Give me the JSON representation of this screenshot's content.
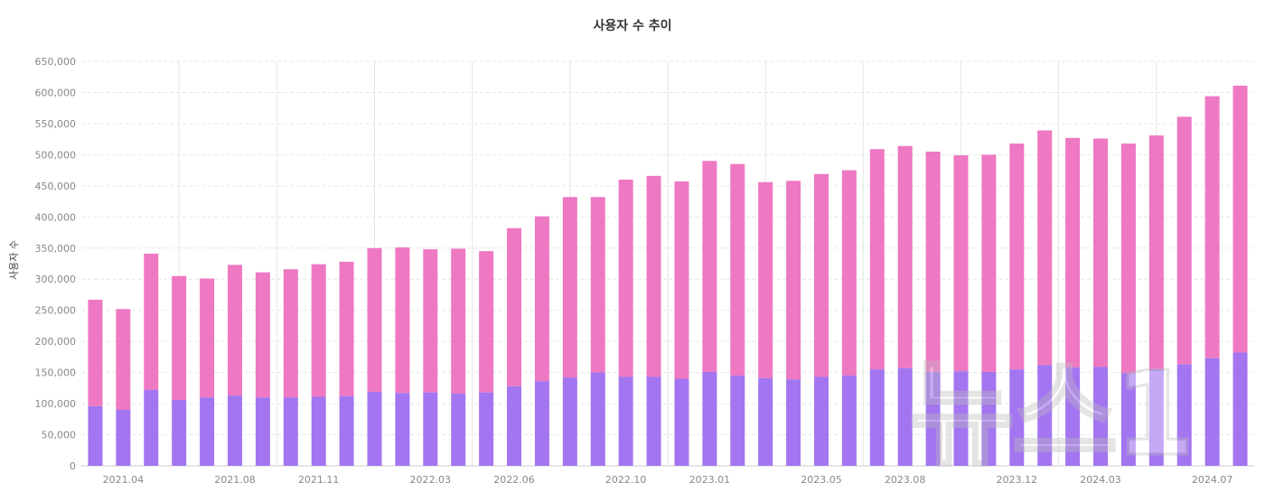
{
  "chart_data": {
    "type": "bar",
    "stacked": true,
    "title": "사용자 수 추이",
    "ylabel": "사용자 수",
    "xlabel": "",
    "ylim": [
      0,
      650000
    ],
    "y_ticks": [
      "0",
      "50,000",
      "100,000",
      "150,000",
      "200,000",
      "250,000",
      "300,000",
      "350,000",
      "400,000",
      "450,000",
      "500,000",
      "550,000",
      "600,000",
      "650,000"
    ],
    "x_tick_labels": [
      {
        "index": 1,
        "label": "2021.04"
      },
      {
        "index": 5,
        "label": "2021.08"
      },
      {
        "index": 8,
        "label": "2021.11"
      },
      {
        "index": 12,
        "label": "2022.03"
      },
      {
        "index": 15,
        "label": "2022.06"
      },
      {
        "index": 19,
        "label": "2022.10"
      },
      {
        "index": 22,
        "label": "2023.01"
      },
      {
        "index": 26,
        "label": "2023.05"
      },
      {
        "index": 29,
        "label": "2023.08"
      },
      {
        "index": 33,
        "label": "2023.12"
      },
      {
        "index": 36,
        "label": "2024.03"
      },
      {
        "index": 40,
        "label": "2024.07"
      }
    ],
    "grid": true,
    "colors": {
      "lower": "#a375f0",
      "upper": "#ee78c2",
      "grid": "#e6e6e6"
    },
    "series_lower": [
      96000,
      90000,
      122000,
      106000,
      110000,
      113000,
      110000,
      110000,
      111000,
      112000,
      119000,
      117000,
      118000,
      116000,
      118000,
      128000,
      136000,
      142000,
      150000,
      143000,
      143000,
      140000,
      151000,
      145000,
      141000,
      139000,
      143000,
      145000,
      155000,
      157000,
      151000,
      152000,
      151000,
      155000,
      162000,
      158000,
      159000,
      149000,
      155000,
      163000,
      173000,
      182000
    ],
    "totals": [
      267000,
      252000,
      341000,
      305000,
      301000,
      323000,
      311000,
      316000,
      324000,
      328000,
      350000,
      351000,
      348000,
      349000,
      345000,
      382000,
      401000,
      432000,
      432000,
      460000,
      466000,
      457000,
      490000,
      485000,
      456000,
      458000,
      469000,
      475000,
      509000,
      514000,
      505000,
      499000,
      500000,
      518000,
      539000,
      527000,
      526000,
      518000,
      531000,
      561000,
      594000,
      611000
    ]
  },
  "watermark": {
    "text": "뉴스1"
  }
}
